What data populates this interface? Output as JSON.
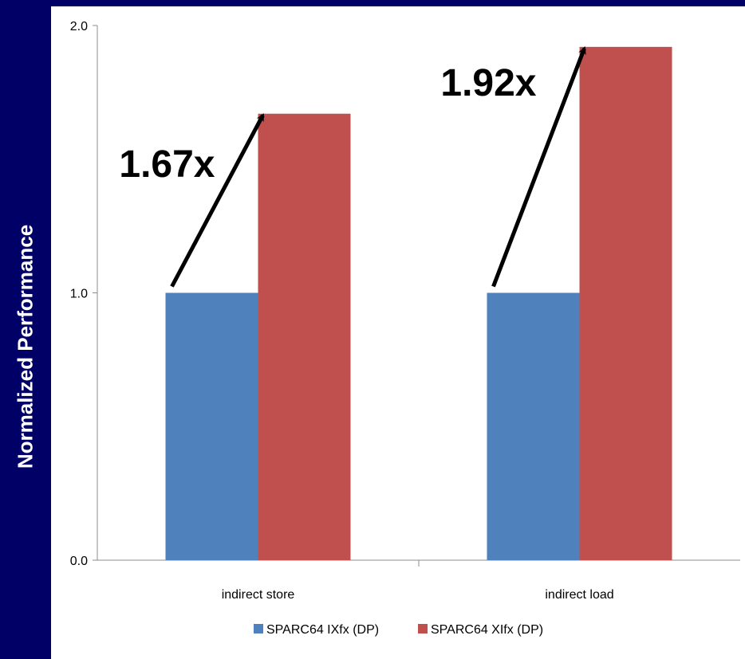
{
  "chart_data": {
    "type": "bar",
    "ylabel": "Normalized Performance",
    "xlabel": "",
    "title": "",
    "categories": [
      "indirect store",
      "indirect load"
    ],
    "series": [
      {
        "name": "SPARC64 IXfx (DP)",
        "color": "#4F81BD",
        "values": [
          1.0,
          1.0
        ]
      },
      {
        "name": "SPARC64 XIfx (DP)",
        "color": "#C0504D",
        "values": [
          1.67,
          1.92
        ]
      }
    ],
    "ylim": [
      0,
      2.0
    ],
    "yticks": [
      "0.0",
      "1.0",
      "2.0"
    ],
    "grid": false,
    "legend": "bottom",
    "annotations": [
      "1.67x",
      "1.92x"
    ]
  },
  "colors": {
    "background": "#000066",
    "panel": "#ffffff",
    "ylabel_text": "#ffffff"
  }
}
